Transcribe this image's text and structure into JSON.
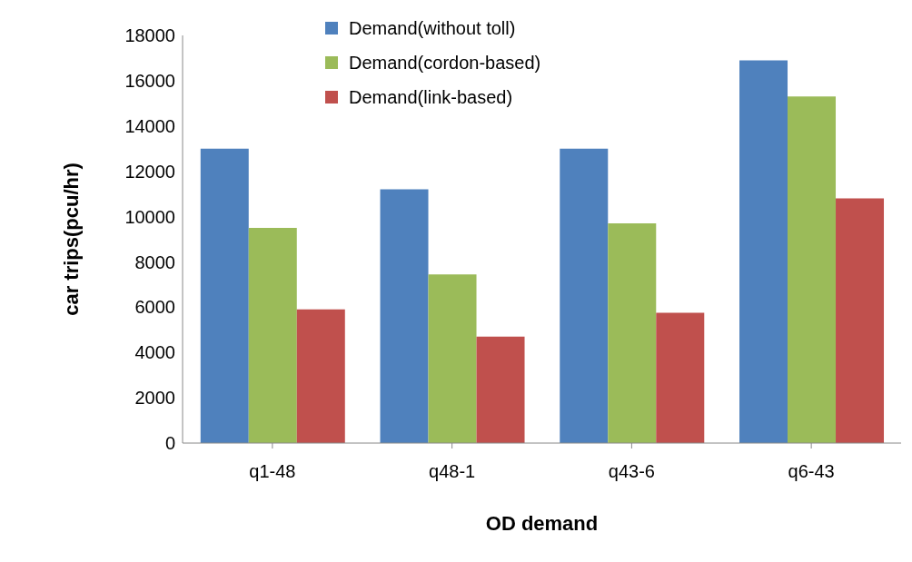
{
  "chart_data": {
    "type": "bar",
    "xlabel": "OD demand",
    "ylabel": "car trips(pcu/hr)",
    "categories": [
      "q1-48",
      "q48-1",
      "q43-6",
      "q6-43"
    ],
    "series": [
      {
        "name": "Demand(without toll)",
        "color": "#4f81bd",
        "values": [
          13000,
          11200,
          13000,
          16900
        ]
      },
      {
        "name": "Demand(cordon-based)",
        "color": "#9bbb59",
        "values": [
          9500,
          7450,
          9700,
          15300
        ]
      },
      {
        "name": "Demand(link-based)",
        "color": "#c0504d",
        "values": [
          5900,
          4700,
          5750,
          10800
        ]
      }
    ],
    "ylim": [
      0,
      18000
    ],
    "yticks": [
      0,
      2000,
      4000,
      6000,
      8000,
      10000,
      12000,
      14000,
      16000,
      18000
    ],
    "grid": false,
    "legend": "top"
  }
}
